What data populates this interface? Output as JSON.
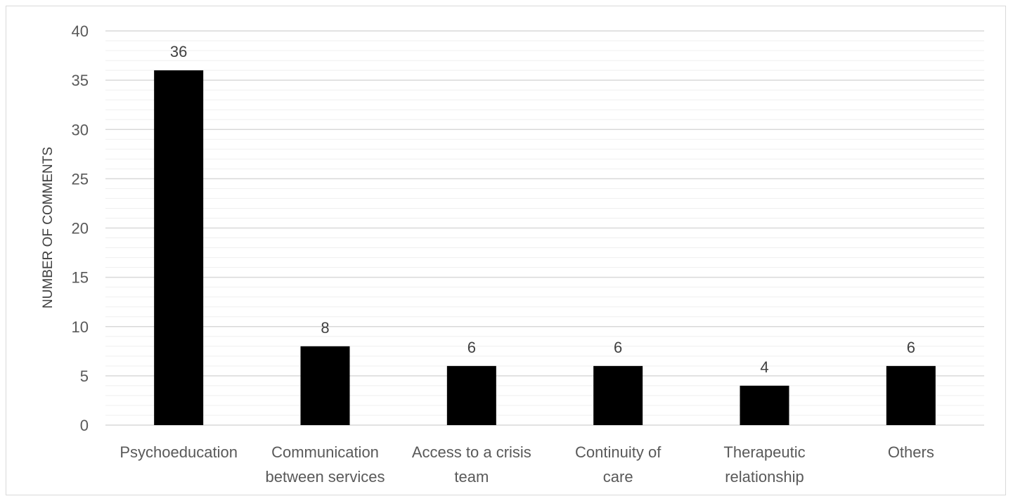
{
  "chart_data": {
    "type": "bar",
    "title": "",
    "xlabel": "",
    "ylabel": "NUMBER OF COMMENTS",
    "ylim": [
      0,
      40
    ],
    "major_ticks": [
      0,
      5,
      10,
      15,
      20,
      25,
      30,
      35,
      40
    ],
    "minor_tick_step": 1,
    "grid": true,
    "legend": "none",
    "categories": [
      [
        "Psychoeducation"
      ],
      [
        "Communication",
        "between services"
      ],
      [
        "Access to a crisis",
        "team"
      ],
      [
        "Continuity of",
        "care"
      ],
      [
        "Therapeutic",
        "relationship"
      ],
      [
        "Others"
      ]
    ],
    "values": [
      36,
      8,
      6,
      6,
      4,
      6
    ],
    "data_labels": [
      "36",
      "8",
      "6",
      "6",
      "4",
      "6"
    ],
    "colors": {
      "bar": "#000000",
      "major_grid": "#d9d9d9",
      "minor_grid": "#efefef",
      "text": "#595959"
    }
  }
}
